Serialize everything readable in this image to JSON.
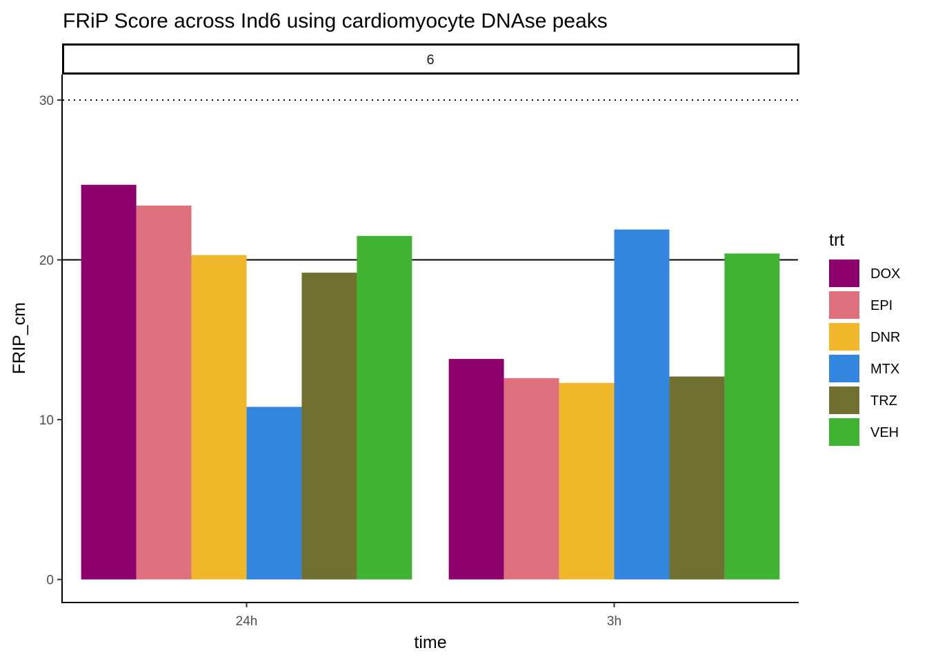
{
  "chart_data": {
    "type": "bar",
    "title": "FRiP Score  across Ind6 using cardiomyocyte DNAse peaks",
    "facet_label": "6",
    "xlabel": "time",
    "ylabel": "FRIP_cm",
    "categories": [
      "24h",
      "3h"
    ],
    "series": [
      {
        "name": "DOX",
        "color": "#8B006B",
        "values": [
          24.7,
          13.8
        ]
      },
      {
        "name": "EPI",
        "color": "#DF707E",
        "values": [
          23.4,
          12.6
        ]
      },
      {
        "name": "DNR",
        "color": "#F1B72B",
        "values": [
          20.3,
          12.3
        ]
      },
      {
        "name": "MTX",
        "color": "#3386DD",
        "values": [
          10.8,
          21.9
        ]
      },
      {
        "name": "TRZ",
        "color": "#707031",
        "values": [
          19.2,
          12.7
        ]
      },
      {
        "name": "VEH",
        "color": "#41B333",
        "values": [
          21.5,
          20.4
        ]
      }
    ],
    "ylim": [
      -1.4,
      31.6
    ],
    "y_ticks": [
      0,
      10,
      20,
      30
    ],
    "reference_lines": [
      {
        "y": 20,
        "style": "solid"
      },
      {
        "y": 30,
        "style": "dotted"
      }
    ],
    "legend": {
      "title": "trt",
      "position": "right"
    },
    "grid": false
  }
}
